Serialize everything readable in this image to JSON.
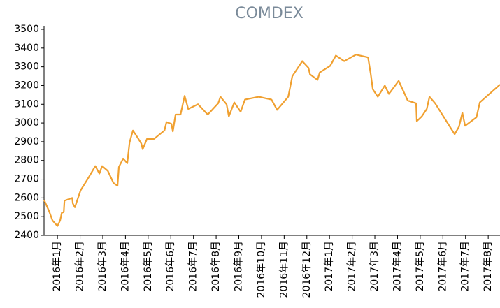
{
  "chart_data": {
    "type": "line",
    "title": "COMDEX",
    "series": [
      {
        "name": "COMDEX",
        "color": "#f0a030",
        "x": [
          0.41,
          0.63,
          0.78,
          1.0,
          1.12,
          1.19,
          1.28,
          1.31,
          1.65,
          1.68,
          1.77,
          2.02,
          2.33,
          2.67,
          2.85,
          2.97,
          3.22,
          3.47,
          3.65,
          3.71,
          3.9,
          4.08,
          4.18,
          4.33,
          4.52,
          4.7,
          4.76,
          4.95,
          5.26,
          5.72,
          5.81,
          6.03,
          6.09,
          6.21,
          6.43,
          6.61,
          6.77,
          7.2,
          7.63,
          8.09,
          8.19,
          8.46,
          8.56,
          8.8,
          9.08,
          9.27,
          9.88,
          10.44,
          10.69,
          11.18,
          11.36,
          11.8,
          12.07,
          12.14,
          12.47,
          12.57,
          13.03,
          13.28,
          13.65,
          14.17,
          14.7,
          14.82,
          14.91,
          15.13,
          15.44,
          15.62,
          16.05,
          16.45,
          16.82,
          16.85,
          17.07,
          17.29,
          17.41,
          17.66,
          18.52,
          18.71,
          18.86,
          18.98,
          19.48,
          19.63,
          20.52
        ],
        "values": [
          2590,
          2530,
          2480,
          2450,
          2480,
          2520,
          2525,
          2585,
          2600,
          2570,
          2550,
          2640,
          2700,
          2770,
          2730,
          2770,
          2745,
          2680,
          2665,
          2765,
          2810,
          2785,
          2895,
          2960,
          2925,
          2890,
          2860,
          2915,
          2915,
          2960,
          3005,
          2995,
          2955,
          3045,
          3045,
          3145,
          3075,
          3100,
          3045,
          3105,
          3140,
          3100,
          3035,
          3110,
          3060,
          3125,
          3140,
          3125,
          3070,
          3140,
          3250,
          3330,
          3295,
          3260,
          3230,
          3270,
          3305,
          3360,
          3330,
          3365,
          3350,
          3260,
          3180,
          3140,
          3200,
          3155,
          3225,
          3120,
          3105,
          3010,
          3035,
          3075,
          3140,
          3105,
          2940,
          2980,
          3055,
          2985,
          3030,
          3110,
          3205
        ]
      }
    ],
    "xlim": [
      0.41,
      20.52
    ],
    "xticks": [
      {
        "value": 1,
        "label": "2016年1月"
      },
      {
        "value": 2,
        "label": "2016年2月"
      },
      {
        "value": 3,
        "label": "2016年3月"
      },
      {
        "value": 4,
        "label": "2016年4月"
      },
      {
        "value": 5,
        "label": "2016年5月"
      },
      {
        "value": 6,
        "label": "2016年6月"
      },
      {
        "value": 7,
        "label": "2016年7月"
      },
      {
        "value": 8,
        "label": "2016年8月"
      },
      {
        "value": 9,
        "label": "2016年9月"
      },
      {
        "value": 10,
        "label": "2016年10月"
      },
      {
        "value": 11,
        "label": "2016年11月"
      },
      {
        "value": 12,
        "label": "2016年12月"
      },
      {
        "value": 13,
        "label": "2017年1月"
      },
      {
        "value": 14,
        "label": "2017年2月"
      },
      {
        "value": 15,
        "label": "2017年3月"
      },
      {
        "value": 16,
        "label": "2017年4月"
      },
      {
        "value": 17,
        "label": "2017年5月"
      },
      {
        "value": 18,
        "label": "2017年6月"
      },
      {
        "value": 19,
        "label": "2017年7月"
      },
      {
        "value": 20,
        "label": "2017年8月"
      }
    ],
    "ylim": [
      2400,
      3500
    ],
    "yticks": [
      2400,
      2500,
      2600,
      2700,
      2800,
      2900,
      3000,
      3100,
      3200,
      3300,
      3400,
      3500
    ],
    "grid": false
  }
}
